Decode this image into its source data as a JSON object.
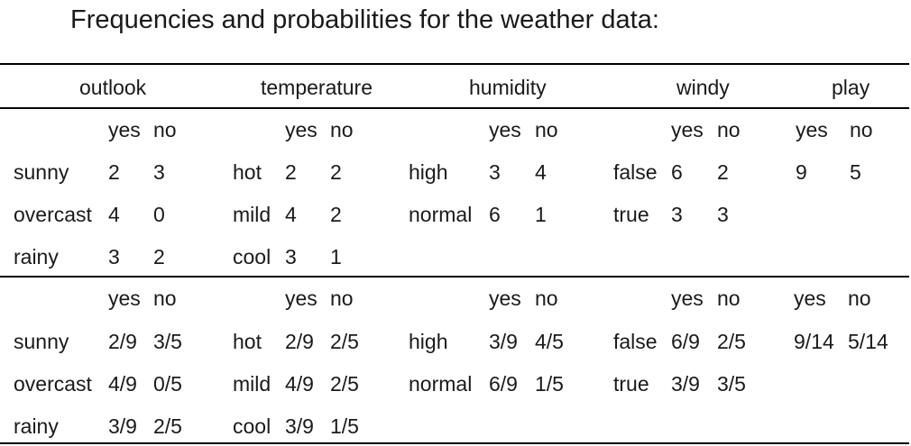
{
  "title": "Frequencies and probabilities for the weather data:",
  "headers": {
    "outlook": "outlook",
    "temperature": "temperature",
    "humidity": "humidity",
    "windy": "windy",
    "play": "play"
  },
  "counts": {
    "outlook": {
      "yes_label": "yes",
      "no_label": "no",
      "rows": [
        {
          "label": "sunny",
          "yes": "2",
          "no": "3"
        },
        {
          "label": "overcast",
          "yes": "4",
          "no": "0"
        },
        {
          "label": "rainy",
          "yes": "3",
          "no": "2"
        }
      ]
    },
    "temperature": {
      "yes_label": "yes",
      "no_label": "no",
      "rows": [
        {
          "label": "hot",
          "yes": "2",
          "no": "2"
        },
        {
          "label": "mild",
          "yes": "4",
          "no": "2"
        },
        {
          "label": "cool",
          "yes": "3",
          "no": "1"
        }
      ]
    },
    "humidity": {
      "yes_label": "yes",
      "no_label": "no",
      "rows": [
        {
          "label": "high",
          "yes": "3",
          "no": "4"
        },
        {
          "label": "normal",
          "yes": "6",
          "no": "1"
        }
      ]
    },
    "windy": {
      "yes_label": "yes",
      "no_label": "no",
      "rows": [
        {
          "label": "false",
          "yes": "6",
          "no": "2"
        },
        {
          "label": "true",
          "yes": "3",
          "no": "3"
        }
      ]
    },
    "play": {
      "yes_label": "yes",
      "no_label": "no",
      "yes": "9",
      "no": "5"
    }
  },
  "probabilities": {
    "outlook": {
      "yes_label": "yes",
      "no_label": "no",
      "rows": [
        {
          "label": "sunny",
          "yes": "2/9",
          "no": "3/5"
        },
        {
          "label": "overcast",
          "yes": "4/9",
          "no": "0/5"
        },
        {
          "label": "rainy",
          "yes": "3/9",
          "no": "2/5"
        }
      ]
    },
    "temperature": {
      "yes_label": "yes",
      "no_label": "no",
      "rows": [
        {
          "label": "hot",
          "yes": "2/9",
          "no": "2/5"
        },
        {
          "label": "mild",
          "yes": "4/9",
          "no": "2/5"
        },
        {
          "label": "cool",
          "yes": "3/9",
          "no": "1/5"
        }
      ]
    },
    "humidity": {
      "yes_label": "yes",
      "no_label": "no",
      "rows": [
        {
          "label": "high",
          "yes": "3/9",
          "no": "4/5"
        },
        {
          "label": "normal",
          "yes": "6/9",
          "no": "1/5"
        }
      ]
    },
    "windy": {
      "yes_label": "yes",
      "no_label": "no",
      "rows": [
        {
          "label": "false",
          "yes": "6/9",
          "no": "2/5"
        },
        {
          "label": "true",
          "yes": "3/9",
          "no": "3/5"
        }
      ]
    },
    "play": {
      "yes_label": "yes",
      "no_label": "no",
      "yes": "9/14",
      "no": "5/14"
    }
  }
}
